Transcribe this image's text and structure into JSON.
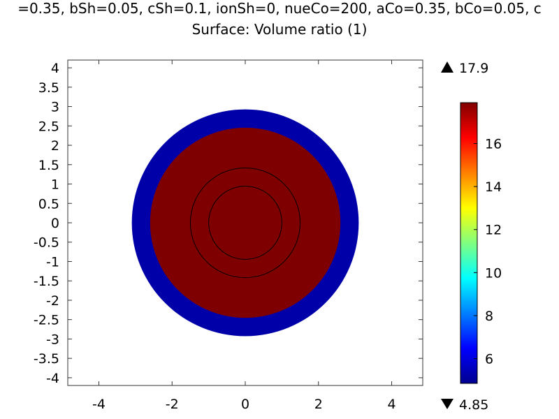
{
  "header": {
    "parameters_line": "=0.35, bSh=0.05, cSh=0.1, ionSh=0, nueCo=200, aCo=0.35, bCo=0.05, c",
    "surface_title": "Surface: Volume ratio (1)"
  },
  "chart_data": {
    "type": "heatmap",
    "title": "Surface: Volume ratio (1)",
    "xlim": [
      -4.85,
      4.85
    ],
    "ylim": [
      -4.2,
      4.2
    ],
    "x_ticks": [
      -4,
      -2,
      0,
      2,
      4
    ],
    "y_ticks": [
      4,
      3.5,
      3,
      2.5,
      2,
      1.5,
      1,
      0.5,
      0,
      -0.5,
      -1,
      -1.5,
      -2,
      -2.5,
      -3,
      -3.5,
      -4
    ],
    "regions": [
      {
        "shape": "disk",
        "center": [
          0,
          0
        ],
        "outer_radius": 3.1,
        "inner_radius": 2.6,
        "value": 4.85,
        "color": "#0000a8"
      },
      {
        "shape": "disk",
        "center": [
          0,
          0
        ],
        "outer_radius": 2.6,
        "inner_radius": 0,
        "value": 17.9,
        "color": "#7f0000"
      }
    ],
    "boundary_circles": [
      {
        "center": [
          0,
          0
        ],
        "radius": 1.5
      },
      {
        "center": [
          0,
          0
        ],
        "radius": 1.0
      }
    ],
    "colorbar": {
      "min": 4.85,
      "max": 17.9,
      "max_label": "17.9",
      "min_label": "4.85",
      "ticks": [
        6,
        8,
        10,
        12,
        14,
        16
      ],
      "colormap": [
        "#00008f",
        "#0000ff",
        "#0080ff",
        "#00ffff",
        "#80ff80",
        "#ffff00",
        "#ff8000",
        "#ff0000",
        "#800000"
      ]
    },
    "grid": false
  }
}
